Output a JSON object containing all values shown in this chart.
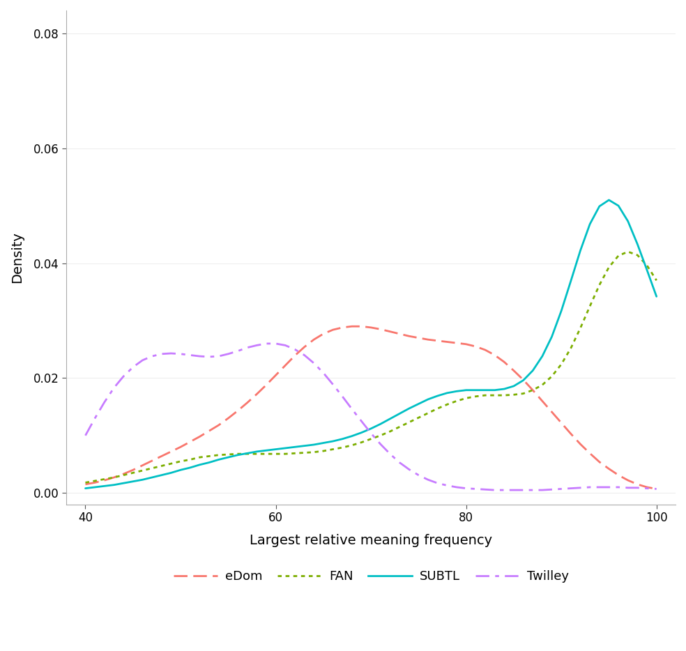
{
  "title": "",
  "xlabel": "Largest relative meaning frequency",
  "ylabel": "Density",
  "xlim": [
    38,
    102
  ],
  "ylim": [
    -0.002,
    0.084
  ],
  "xticks": [
    40,
    60,
    80,
    100
  ],
  "yticks": [
    0.0,
    0.02,
    0.04,
    0.06,
    0.08
  ],
  "background_color": "#ffffff",
  "series": {
    "eDom": {
      "color": "#F8766D",
      "linestyle": "dashed",
      "linewidth": 2.0,
      "x": [
        40,
        41,
        42,
        43,
        44,
        45,
        46,
        47,
        48,
        49,
        50,
        51,
        52,
        53,
        54,
        55,
        56,
        57,
        58,
        59,
        60,
        61,
        62,
        63,
        64,
        65,
        66,
        67,
        68,
        69,
        70,
        71,
        72,
        73,
        74,
        75,
        76,
        77,
        78,
        79,
        80,
        81,
        82,
        83,
        84,
        85,
        86,
        87,
        88,
        89,
        90,
        91,
        92,
        93,
        94,
        95,
        96,
        97,
        98,
        99,
        100
      ],
      "y": [
        0.0015,
        0.0018,
        0.0022,
        0.0027,
        0.0033,
        0.004,
        0.0048,
        0.0056,
        0.0064,
        0.0072,
        0.008,
        0.0089,
        0.0098,
        0.0108,
        0.0118,
        0.013,
        0.0143,
        0.0157,
        0.0172,
        0.0188,
        0.0205,
        0.0222,
        0.0239,
        0.0254,
        0.0267,
        0.0277,
        0.0284,
        0.0288,
        0.029,
        0.029,
        0.0288,
        0.0285,
        0.0281,
        0.0277,
        0.0273,
        0.027,
        0.0267,
        0.0265,
        0.0263,
        0.0261,
        0.0259,
        0.0255,
        0.0249,
        0.024,
        0.0228,
        0.0213,
        0.0197,
        0.0179,
        0.016,
        0.0141,
        0.0122,
        0.0103,
        0.0085,
        0.0069,
        0.0054,
        0.0042,
        0.0031,
        0.0022,
        0.0015,
        0.001,
        0.0007
      ]
    },
    "FAN": {
      "color": "#7CAE00",
      "linestyle": "dotted",
      "linewidth": 2.0,
      "x": [
        40,
        41,
        42,
        43,
        44,
        45,
        46,
        47,
        48,
        49,
        50,
        51,
        52,
        53,
        54,
        55,
        56,
        57,
        58,
        59,
        60,
        61,
        62,
        63,
        64,
        65,
        66,
        67,
        68,
        69,
        70,
        71,
        72,
        73,
        74,
        75,
        76,
        77,
        78,
        79,
        80,
        81,
        82,
        83,
        84,
        85,
        86,
        87,
        88,
        89,
        90,
        91,
        92,
        93,
        94,
        95,
        96,
        97,
        98,
        99,
        100
      ],
      "y": [
        0.0018,
        0.0021,
        0.0024,
        0.0027,
        0.0031,
        0.0035,
        0.0039,
        0.0043,
        0.0047,
        0.0051,
        0.0055,
        0.0058,
        0.0062,
        0.0064,
        0.0066,
        0.0067,
        0.0068,
        0.0068,
        0.0068,
        0.0068,
        0.0068,
        0.0068,
        0.0069,
        0.007,
        0.0071,
        0.0073,
        0.0076,
        0.0079,
        0.0083,
        0.0088,
        0.0094,
        0.01,
        0.0107,
        0.0115,
        0.0123,
        0.0131,
        0.0139,
        0.0147,
        0.0154,
        0.016,
        0.0165,
        0.0168,
        0.017,
        0.017,
        0.017,
        0.0171,
        0.0173,
        0.0179,
        0.0188,
        0.0203,
        0.0224,
        0.0252,
        0.0287,
        0.0325,
        0.0362,
        0.0393,
        0.0413,
        0.042,
        0.0414,
        0.0396,
        0.037
      ]
    },
    "SUBTL": {
      "color": "#00BFC4",
      "linestyle": "solid",
      "linewidth": 2.0,
      "x": [
        40,
        41,
        42,
        43,
        44,
        45,
        46,
        47,
        48,
        49,
        50,
        51,
        52,
        53,
        54,
        55,
        56,
        57,
        58,
        59,
        60,
        61,
        62,
        63,
        64,
        65,
        66,
        67,
        68,
        69,
        70,
        71,
        72,
        73,
        74,
        75,
        76,
        77,
        78,
        79,
        80,
        81,
        82,
        83,
        84,
        85,
        86,
        87,
        88,
        89,
        90,
        91,
        92,
        93,
        94,
        95,
        96,
        97,
        98,
        99,
        100
      ],
      "y": [
        0.0008,
        0.001,
        0.0012,
        0.0014,
        0.0017,
        0.002,
        0.0023,
        0.0027,
        0.0031,
        0.0035,
        0.004,
        0.0044,
        0.0049,
        0.0053,
        0.0058,
        0.0062,
        0.0066,
        0.0069,
        0.0072,
        0.0074,
        0.0076,
        0.0078,
        0.008,
        0.0082,
        0.0084,
        0.0087,
        0.009,
        0.0094,
        0.0099,
        0.0105,
        0.0112,
        0.012,
        0.0129,
        0.0138,
        0.0147,
        0.0155,
        0.0163,
        0.0169,
        0.0174,
        0.0177,
        0.0179,
        0.0179,
        0.0179,
        0.0179,
        0.0181,
        0.0186,
        0.0196,
        0.0213,
        0.0238,
        0.0272,
        0.0317,
        0.0369,
        0.0422,
        0.0468,
        0.0499,
        0.051,
        0.05,
        0.0473,
        0.0433,
        0.0388,
        0.0342
      ]
    },
    "Twilley": {
      "color": "#C77CFF",
      "linestyle": "dashdot",
      "linewidth": 2.0,
      "x": [
        40,
        41,
        42,
        43,
        44,
        45,
        46,
        47,
        48,
        49,
        50,
        51,
        52,
        53,
        54,
        55,
        56,
        57,
        58,
        59,
        60,
        61,
        62,
        63,
        64,
        65,
        66,
        67,
        68,
        69,
        70,
        71,
        72,
        73,
        74,
        75,
        76,
        77,
        78,
        79,
        80,
        81,
        82,
        83,
        84,
        85,
        86,
        87,
        88,
        89,
        90,
        91,
        92,
        93,
        94,
        95,
        96,
        97,
        98,
        99,
        100
      ],
      "y": [
        0.01,
        0.013,
        0.0158,
        0.0183,
        0.0203,
        0.0219,
        0.0231,
        0.0238,
        0.0242,
        0.0243,
        0.0242,
        0.024,
        0.0238,
        0.0237,
        0.0238,
        0.0242,
        0.0247,
        0.0253,
        0.0257,
        0.026,
        0.026,
        0.0257,
        0.025,
        0.024,
        0.0226,
        0.0209,
        0.0189,
        0.0168,
        0.0146,
        0.0125,
        0.0104,
        0.0085,
        0.0068,
        0.0053,
        0.0041,
        0.0031,
        0.0023,
        0.0017,
        0.0013,
        0.001,
        0.0008,
        0.0007,
        0.0006,
        0.0005,
        0.0005,
        0.0005,
        0.0005,
        0.0005,
        0.0005,
        0.0006,
        0.0007,
        0.0008,
        0.0009,
        0.001,
        0.001,
        0.001,
        0.001,
        0.0009,
        0.0009,
        0.0008,
        0.0007
      ]
    }
  },
  "legend": {
    "entries": [
      "eDom",
      "FAN",
      "SUBTL",
      "Twilley"
    ],
    "ncol": 4,
    "fontsize": 13
  }
}
